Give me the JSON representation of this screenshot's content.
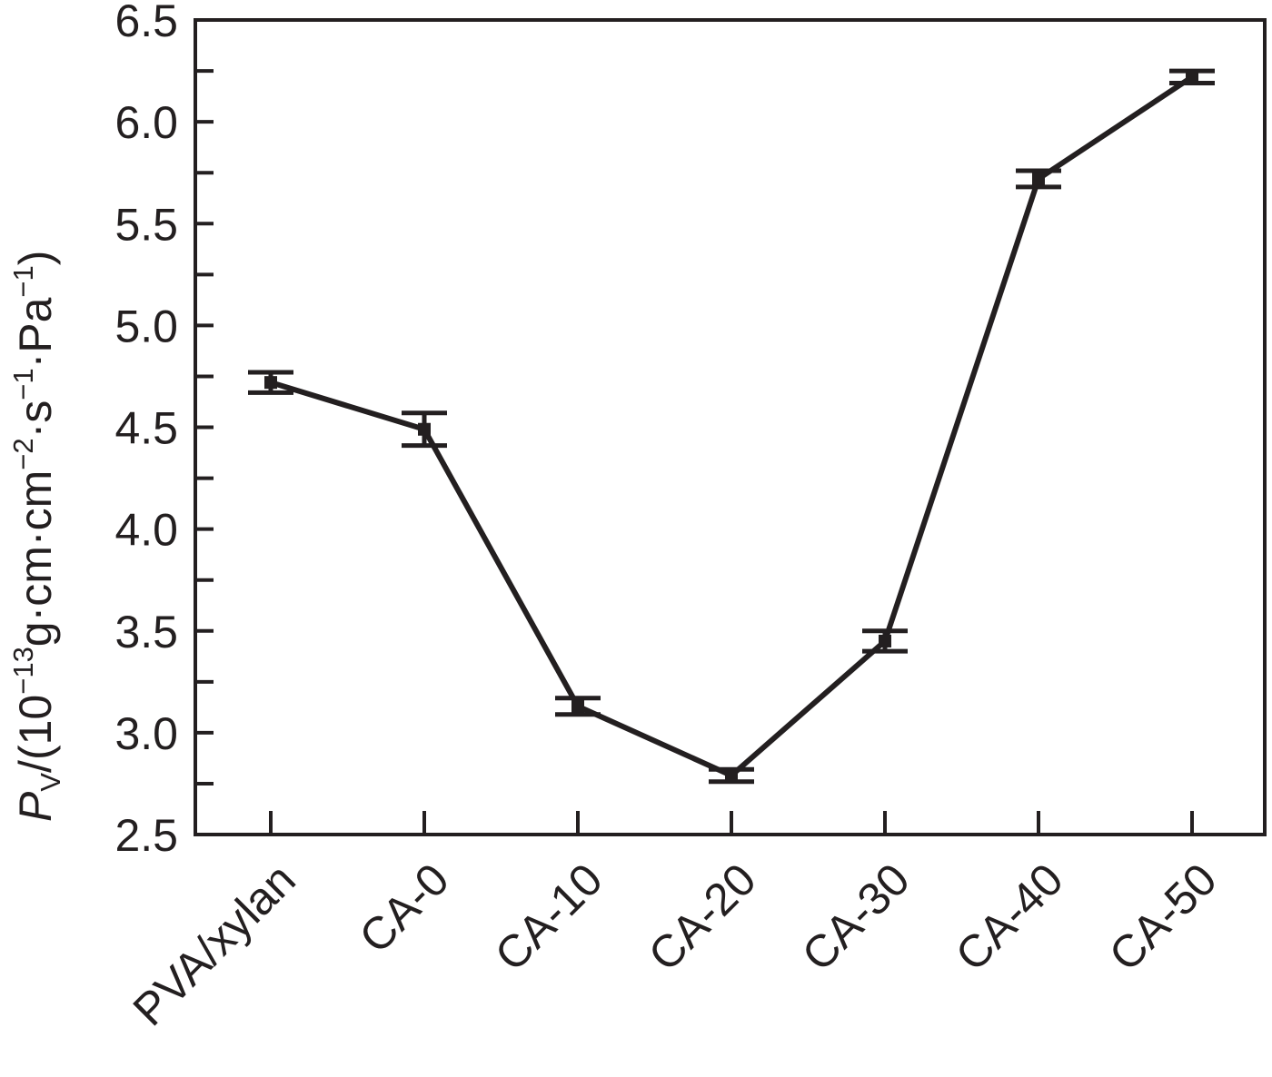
{
  "chart_data": {
    "type": "line",
    "categories": [
      "PVA/xylan",
      "CA-0",
      "CA-10",
      "CA-20",
      "CA-30",
      "CA-40",
      "CA-50"
    ],
    "series": [
      {
        "values": [
          4.72,
          4.49,
          3.13,
          2.79,
          3.45,
          5.72,
          6.22
        ],
        "errors": [
          0.05,
          0.08,
          0.04,
          0.03,
          0.05,
          0.04,
          0.03
        ]
      }
    ],
    "ylim": [
      2.5,
      6.5
    ],
    "yticks": [
      "2.5",
      "3.0",
      "3.5",
      "4.0",
      "4.5",
      "5.0",
      "5.5",
      "6.0",
      "6.5"
    ],
    "ylabel": {
      "symbol": "P",
      "subscript": "V",
      "open": "/(10",
      "exp1": "−13",
      "mid1": "g·cm·cm",
      "exp2": "−2",
      "mid2": "·s",
      "exp3": "−1",
      "mid3": "·Pa",
      "exp4": "−1",
      "close": ")"
    },
    "xlabel": "",
    "title": "",
    "grid": false,
    "legend": "none",
    "colors": {
      "ink": "#231f20"
    }
  }
}
